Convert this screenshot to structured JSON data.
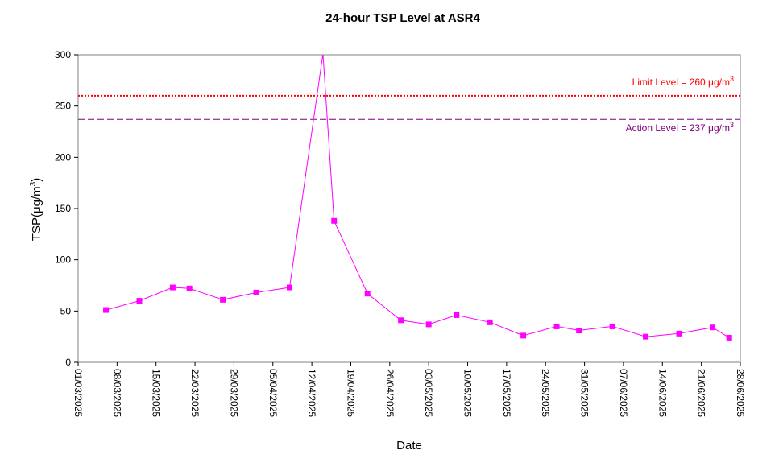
{
  "chart_data": {
    "type": "line",
    "title": "24-hour TSP Level at ASR4",
    "xlabel": "Date",
    "ylabel_text": "TSP(",
    "ylabel_mu": "μ",
    "ylabel_unit": "g/m",
    "ylabel_sup": "3",
    "ylabel_close": ")",
    "xlim": [
      "2025-03-01",
      "2025-06-28"
    ],
    "ylim": [
      0,
      300
    ],
    "y_ticks": [
      0,
      50,
      100,
      150,
      200,
      250,
      300
    ],
    "x_ticks": [
      "01/03/2025",
      "08/03/2025",
      "15/03/2025",
      "22/03/2025",
      "29/03/2025",
      "05/04/2025",
      "12/04/2025",
      "19/04/2025",
      "26/04/2025",
      "03/05/2025",
      "10/05/2025",
      "17/05/2025",
      "24/05/2025",
      "31/05/2025",
      "07/06/2025",
      "14/06/2025",
      "21/06/2025",
      "28/06/2025"
    ],
    "x_tick_dates": [
      "2025-03-01",
      "2025-03-08",
      "2025-03-15",
      "2025-03-22",
      "2025-03-29",
      "2025-04-05",
      "2025-04-12",
      "2025-04-19",
      "2025-04-26",
      "2025-05-03",
      "2025-05-10",
      "2025-05-17",
      "2025-05-24",
      "2025-05-31",
      "2025-06-07",
      "2025-06-14",
      "2025-06-21",
      "2025-06-28"
    ],
    "grid": false,
    "series": [
      {
        "color": "#FF00FF",
        "points": [
          {
            "x": "2025-03-06",
            "y": 51
          },
          {
            "x": "2025-03-12",
            "y": 60
          },
          {
            "x": "2025-03-18",
            "y": 73
          },
          {
            "x": "2025-03-21",
            "y": 72
          },
          {
            "x": "2025-03-27",
            "y": 61
          },
          {
            "x": "2025-04-02",
            "y": 68
          },
          {
            "x": "2025-04-08",
            "y": 73
          },
          {
            "x": "2025-04-14",
            "y": 301
          },
          {
            "x": "2025-04-16",
            "y": 138
          },
          {
            "x": "2025-04-22",
            "y": 67
          },
          {
            "x": "2025-04-28",
            "y": 41
          },
          {
            "x": "2025-05-03",
            "y": 37
          },
          {
            "x": "2025-05-08",
            "y": 46
          },
          {
            "x": "2025-05-14",
            "y": 39
          },
          {
            "x": "2025-05-20",
            "y": 26
          },
          {
            "x": "2025-05-26",
            "y": 35
          },
          {
            "x": "2025-05-30",
            "y": 31
          },
          {
            "x": "2025-06-05",
            "y": 35
          },
          {
            "x": "2025-06-11",
            "y": 25
          },
          {
            "x": "2025-06-17",
            "y": 28
          },
          {
            "x": "2025-06-23",
            "y": 34
          },
          {
            "x": "2025-06-26",
            "y": 24
          }
        ],
        "marker_indices_hidden": [
          7
        ]
      }
    ],
    "reference_lines": [
      {
        "label_text": "Limit Level  = 260 ",
        "label_mu": "μ",
        "label_unit": "g/m",
        "label_sup": "3",
        "y": 260,
        "color": "#FF0000",
        "style": "dotted",
        "label_position": "above"
      },
      {
        "label_text": "Action Level  = 237 ",
        "label_mu": "μ",
        "label_unit": "g/m",
        "label_sup": "3",
        "y": 237,
        "color": "#800080",
        "style": "dashed",
        "label_position": "below"
      }
    ]
  }
}
